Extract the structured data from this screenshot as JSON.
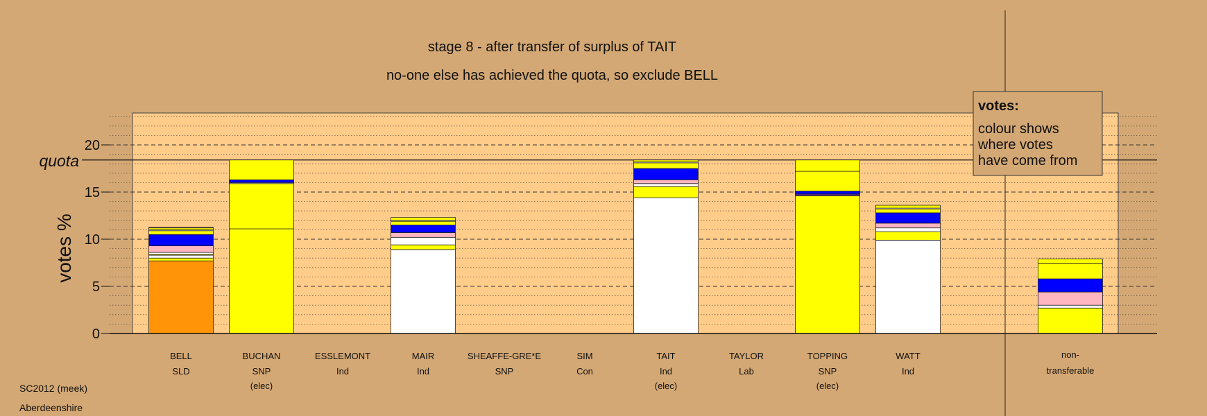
{
  "chart_data": {
    "type": "bar",
    "stacked": true,
    "title": "stage 8 - after transfer of surplus of TAIT",
    "subtitle": "no-one else has achieved the quota, so exclude BELL",
    "ylabel": "votes %",
    "ylim": [
      0,
      23
    ],
    "yticks": [
      0,
      5,
      10,
      15,
      20
    ],
    "quota": 18.4,
    "quota_label": "quota",
    "grid": true,
    "legend": {
      "position": "top-right",
      "title": "votes:",
      "lines": [
        "colour shows",
        "where votes",
        "have come from"
      ]
    },
    "colors": {
      "white": "#FFFFFF",
      "yellow": "#FFFF00",
      "blue": "#0000FF",
      "pink": "#FFB6C1",
      "orange": "#FF9409",
      "purple": "#5B2D8C",
      "background": "#D4A874",
      "plot_area": "#FFCC8A"
    },
    "categories": [
      {
        "name": "BELL",
        "party": "SLD",
        "note": "",
        "segments": [
          {
            "c": "orange",
            "v": 7.7
          },
          {
            "c": "yellow",
            "v": 0.3
          },
          {
            "c": "white",
            "v": 0.3
          },
          {
            "c": "yellow",
            "v": 0.1
          },
          {
            "c": "white",
            "v": 0.2
          },
          {
            "c": "pink",
            "v": 0.7
          },
          {
            "c": "blue",
            "v": 1.2
          },
          {
            "c": "yellow",
            "v": 0.4
          },
          {
            "c": "white",
            "v": 0.1
          },
          {
            "c": "yellow",
            "v": 0.2
          },
          {
            "c": "white",
            "v": 0.05
          }
        ]
      },
      {
        "name": "BUCHAN",
        "party": "SNP",
        "note": "(elec)",
        "segments": [
          {
            "c": "yellow",
            "v": 11.1
          },
          {
            "c": "yellow",
            "v": 4.8
          },
          {
            "c": "white",
            "v": 0.1
          },
          {
            "c": "blue",
            "v": 0.3
          },
          {
            "c": "yellow",
            "v": 2.1
          }
        ]
      },
      {
        "name": "ESSLEMONT",
        "party": "Ind",
        "note": "",
        "segments": []
      },
      {
        "name": "MAIR",
        "party": "Ind",
        "note": "",
        "segments": [
          {
            "c": "white",
            "v": 8.9
          },
          {
            "c": "yellow",
            "v": 0.5
          },
          {
            "c": "white",
            "v": 0.8
          },
          {
            "c": "pink",
            "v": 0.5
          },
          {
            "c": "blue",
            "v": 0.8
          },
          {
            "c": "yellow",
            "v": 0.4
          },
          {
            "c": "white",
            "v": 0.1
          },
          {
            "c": "yellow",
            "v": 0.3
          }
        ]
      },
      {
        "name": "SHEAFFE-GRE*E",
        "party": "SNP",
        "note": "",
        "segments": []
      },
      {
        "name": "SIM",
        "party": "Con",
        "note": "",
        "segments": []
      },
      {
        "name": "TAIT",
        "party": "Ind",
        "note": "(elec)",
        "segments": [
          {
            "c": "white",
            "v": 14.4
          },
          {
            "c": "yellow",
            "v": 1.2
          },
          {
            "c": "white",
            "v": 0.3
          },
          {
            "c": "pink",
            "v": 0.4
          },
          {
            "c": "blue",
            "v": 1.2
          },
          {
            "c": "yellow",
            "v": 0.6
          },
          {
            "c": "white",
            "v": 0.1
          },
          {
            "c": "yellow",
            "v": 0.2
          }
        ]
      },
      {
        "name": "TAYLOR",
        "party": "Lab",
        "note": "",
        "segments": []
      },
      {
        "name": "TOPPING",
        "party": "SNP",
        "note": "(elec)",
        "segments": [
          {
            "c": "yellow",
            "v": 14.6
          },
          {
            "c": "purple",
            "v": 0.2
          },
          {
            "c": "blue",
            "v": 0.3
          },
          {
            "c": "yellow",
            "v": 2.1
          },
          {
            "c": "yellow",
            "v": 1.2
          }
        ]
      },
      {
        "name": "WATT",
        "party": "Ind",
        "note": "",
        "segments": [
          {
            "c": "white",
            "v": 9.9
          },
          {
            "c": "yellow",
            "v": 0.9
          },
          {
            "c": "white",
            "v": 0.4
          },
          {
            "c": "pink",
            "v": 0.5
          },
          {
            "c": "blue",
            "v": 1.1
          },
          {
            "c": "yellow",
            "v": 0.4
          },
          {
            "c": "white",
            "v": 0.1
          },
          {
            "c": "yellow",
            "v": 0.3
          }
        ]
      }
    ],
    "nontransferable": {
      "label_line1": "non-",
      "label_line2": "transferable",
      "segments": [
        {
          "c": "yellow",
          "v": 2.7
        },
        {
          "c": "white",
          "v": 0.3
        },
        {
          "c": "pink",
          "v": 1.4
        },
        {
          "c": "blue",
          "v": 1.4
        },
        {
          "c": "yellow",
          "v": 1.6
        },
        {
          "c": "yellow",
          "v": 0.5
        }
      ]
    }
  },
  "footer": {
    "line1": "SC2012 (meek)",
    "line2": "Aberdeenshire"
  }
}
